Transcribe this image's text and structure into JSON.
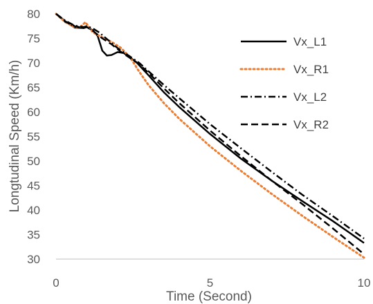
{
  "chart_data": {
    "type": "line",
    "xlabel": "Time (Second)",
    "ylabel": "Longtudinal Speed (Km/h)",
    "xlim": [
      0,
      10
    ],
    "ylim": [
      30,
      80
    ],
    "x_ticks": [
      "0",
      "5",
      "10"
    ],
    "y_ticks": [
      "30",
      "35",
      "40",
      "45",
      "50",
      "55",
      "60",
      "65",
      "70",
      "75",
      "80"
    ],
    "grid": false,
    "legend_position": "top-right",
    "series": [
      {
        "name": "Vx_L1",
        "color": "#000000",
        "style": "solid",
        "x": [
          0,
          0.3,
          0.6,
          0.9,
          1.0,
          1.2,
          1.35,
          1.5,
          1.65,
          1.8,
          2.0,
          2.2,
          2.4,
          2.6,
          3.0,
          3.5,
          4.0,
          5.0,
          6.0,
          7.0,
          8.0,
          9.0,
          10.0
        ],
        "y": [
          80,
          78.5,
          77.2,
          77.1,
          77.3,
          76.6,
          75.5,
          72.5,
          71.5,
          71.6,
          72.2,
          72.0,
          71.1,
          70.2,
          67.5,
          64,
          61,
          55.5,
          50.5,
          46,
          41.8,
          37.7,
          33.3
        ]
      },
      {
        "name": "Vx_R1",
        "color": "#ED7D31",
        "style": "dotted",
        "x": [
          0,
          0.3,
          0.6,
          0.8,
          0.95,
          1.05,
          1.2,
          1.5,
          1.8,
          2.1,
          2.4,
          2.7,
          3.0,
          3.5,
          4.0,
          5.0,
          6.0,
          7.0,
          8.0,
          9.0,
          10.0
        ],
        "y": [
          80,
          78.3,
          77.3,
          77.4,
          78.3,
          77.5,
          76.2,
          75.2,
          74.3,
          73.1,
          71.2,
          68.2,
          65.5,
          61.8,
          58.6,
          53.0,
          48.0,
          43.3,
          38.8,
          34.5,
          30.3
        ]
      },
      {
        "name": "Vx_L2",
        "color": "#000000",
        "style": "dashdot",
        "x": [
          0,
          0.3,
          0.6,
          0.9,
          1.0,
          1.2,
          1.4,
          1.7,
          2.0,
          2.4,
          2.7,
          3.0,
          3.5,
          4.0,
          5.0,
          6.0,
          7.0,
          8.0,
          9.0,
          10.0
        ],
        "y": [
          80,
          78.6,
          77.6,
          77.3,
          77.5,
          77.0,
          76.2,
          74.6,
          73.0,
          71.3,
          70.0,
          68.3,
          65.5,
          62.8,
          57.5,
          52.6,
          47.8,
          43.1,
          38.7,
          34.2
        ]
      },
      {
        "name": "Vx_R2",
        "color": "#000000",
        "style": "dashed",
        "x": [
          0,
          0.3,
          0.6,
          0.9,
          1.0,
          1.2,
          1.5,
          1.8,
          2.1,
          2.4,
          2.7,
          3.0,
          3.5,
          4.0,
          5.0,
          6.0,
          7.0,
          8.0,
          9.0,
          10.0
        ],
        "y": [
          80,
          78.4,
          77.5,
          77.1,
          77.3,
          76.5,
          75.0,
          73.8,
          72.3,
          71.0,
          69.7,
          68.0,
          64.8,
          61.8,
          56.2,
          51.0,
          46.0,
          41.2,
          36.2,
          31.0
        ]
      }
    ]
  }
}
